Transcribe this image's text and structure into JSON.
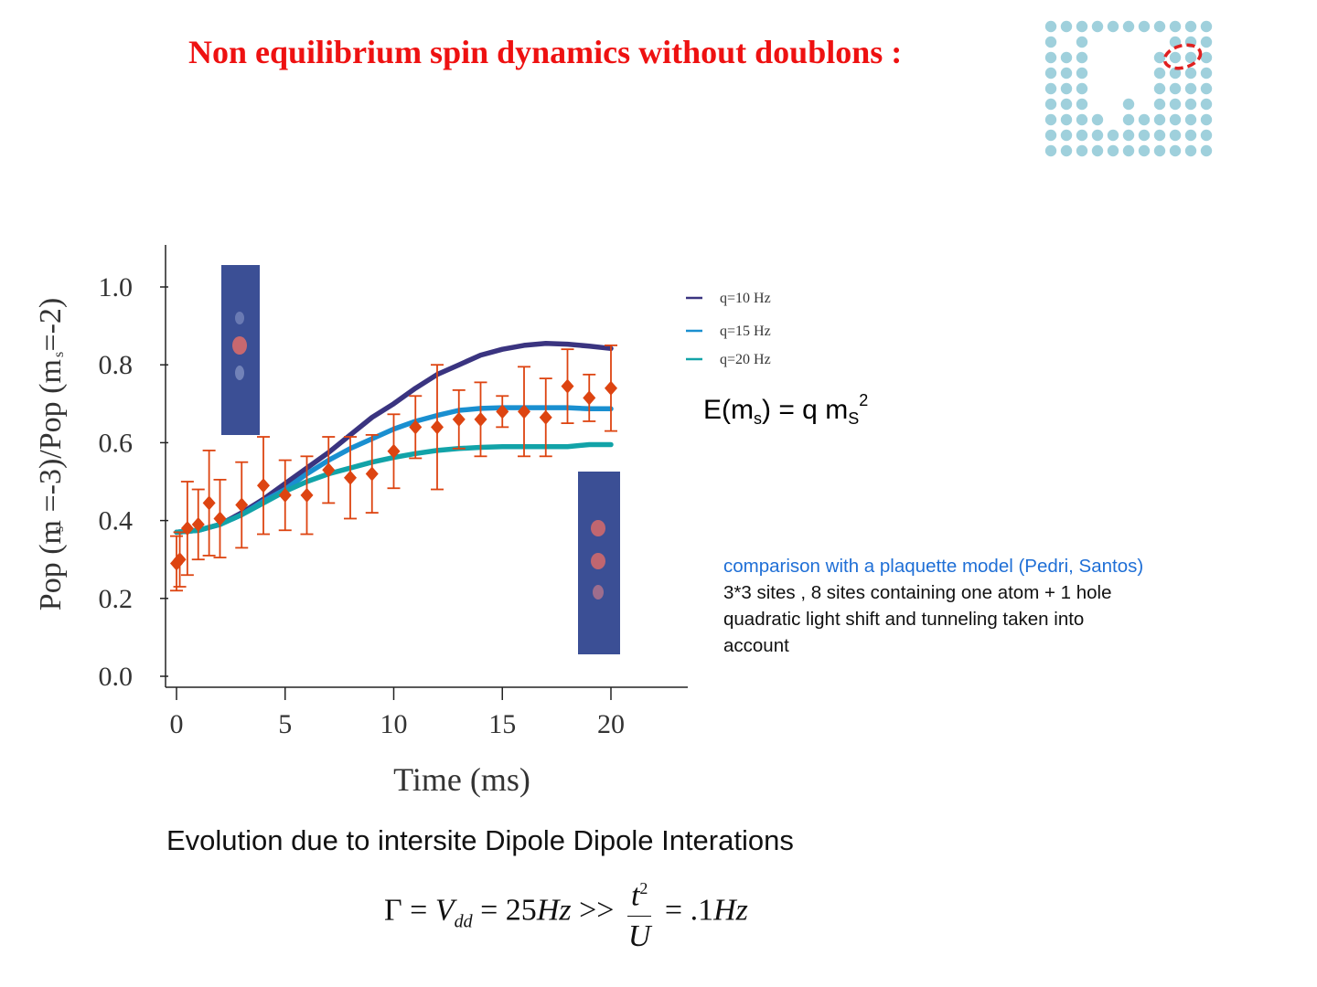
{
  "title": "Non equilibrium spin dynamics without doublons :",
  "energy": {
    "prefix": "E(m",
    "sub1": "s",
    "mid": ") = q m",
    "sub2": "S",
    "sup": "2"
  },
  "notes": {
    "line1": "comparison with a plaquette model (Pedri, Santos)",
    "line2": "3*3 sites , 8 sites containing one atom + 1 hole",
    "line3": "quadratic light shift and tunneling taken into",
    "line4": "account"
  },
  "evolution": "Evolution due to intersite Dipole Dipole Interations",
  "formula": {
    "gamma": "Γ",
    "eq1": " = ",
    "v": "V",
    "vsub": "dd",
    "eq2": " = 25",
    "hz1": "Hz",
    "gg": " >> ",
    "t": "t",
    "tsup": "2",
    "u": "U",
    "eq3": " = .1",
    "hz2": "Hz"
  },
  "colors": {
    "title": "#ee1111",
    "data": "#dd4411",
    "q10": "#3a3480",
    "q15": "#1a8fd0",
    "q20": "#12a3a8",
    "logo": "#9fd0dc",
    "logo_ring": "#e02020"
  },
  "chart_data": {
    "type": "scatter",
    "title": "",
    "xlabel": "Time (ms)",
    "ylabel": "Pop (m  =-3)/Pop (m  =-2)",
    "ylabel_sub": "s",
    "xlim": [
      -1,
      23.5
    ],
    "ylim": [
      -0.03,
      1.1
    ],
    "xticks": [
      0,
      5,
      10,
      15,
      20
    ],
    "yticks": [
      0.0,
      0.2,
      0.4,
      0.6,
      0.8,
      1.0
    ],
    "ytick_labels": [
      "0.0",
      "0.2",
      "0.4",
      "0.6",
      "0.8",
      "1.0"
    ],
    "points": [
      {
        "x": 0.0,
        "y": 0.29,
        "err": 0.07
      },
      {
        "x": 0.15,
        "y": 0.3,
        "err": 0.07
      },
      {
        "x": 0.5,
        "y": 0.38,
        "err": 0.12
      },
      {
        "x": 1.0,
        "y": 0.39,
        "err": 0.09
      },
      {
        "x": 1.5,
        "y": 0.445,
        "err": 0.135
      },
      {
        "x": 2.0,
        "y": 0.405,
        "err": 0.1
      },
      {
        "x": 3.0,
        "y": 0.44,
        "err": 0.11
      },
      {
        "x": 4.0,
        "y": 0.49,
        "err": 0.125
      },
      {
        "x": 5.0,
        "y": 0.465,
        "err": 0.09
      },
      {
        "x": 6.0,
        "y": 0.465,
        "err": 0.1
      },
      {
        "x": 7.0,
        "y": 0.53,
        "err": 0.085
      },
      {
        "x": 8.0,
        "y": 0.51,
        "err": 0.105
      },
      {
        "x": 9.0,
        "y": 0.52,
        "err": 0.1
      },
      {
        "x": 10.0,
        "y": 0.578,
        "err": 0.095
      },
      {
        "x": 11.0,
        "y": 0.64,
        "err": 0.08
      },
      {
        "x": 12.0,
        "y": 0.64,
        "err": 0.16
      },
      {
        "x": 13.0,
        "y": 0.66,
        "err": 0.075
      },
      {
        "x": 14.0,
        "y": 0.66,
        "err": 0.095
      },
      {
        "x": 15.0,
        "y": 0.68,
        "err": 0.04
      },
      {
        "x": 16.0,
        "y": 0.68,
        "err": 0.115
      },
      {
        "x": 17.0,
        "y": 0.665,
        "err": 0.1
      },
      {
        "x": 18.0,
        "y": 0.745,
        "err": 0.095
      },
      {
        "x": 19.0,
        "y": 0.715,
        "err": 0.06
      },
      {
        "x": 20.0,
        "y": 0.74,
        "err": 0.11
      }
    ],
    "series": [
      {
        "name": "q=10 Hz",
        "x": [
          0,
          1,
          2,
          3,
          4,
          5,
          6,
          7,
          8,
          9,
          10,
          11,
          12,
          13,
          14,
          15,
          16,
          17,
          18,
          19,
          20
        ],
        "y": [
          0.37,
          0.375,
          0.39,
          0.42,
          0.455,
          0.495,
          0.535,
          0.575,
          0.62,
          0.665,
          0.7,
          0.74,
          0.775,
          0.8,
          0.825,
          0.84,
          0.85,
          0.855,
          0.853,
          0.848,
          0.842
        ]
      },
      {
        "name": "q=15 Hz",
        "x": [
          0,
          1,
          2,
          3,
          4,
          5,
          6,
          7,
          8,
          9,
          10,
          11,
          12,
          13,
          14,
          15,
          16,
          17,
          18,
          19,
          20
        ],
        "y": [
          0.37,
          0.375,
          0.39,
          0.415,
          0.45,
          0.48,
          0.52,
          0.555,
          0.585,
          0.61,
          0.635,
          0.655,
          0.67,
          0.683,
          0.688,
          0.69,
          0.69,
          0.69,
          0.69,
          0.687,
          0.687
        ]
      },
      {
        "name": "q=20 Hz",
        "x": [
          0,
          1,
          2,
          3,
          4,
          5,
          6,
          7,
          8,
          9,
          10,
          11,
          12,
          13,
          14,
          15,
          16,
          17,
          18,
          19,
          20
        ],
        "y": [
          0.37,
          0.375,
          0.39,
          0.415,
          0.445,
          0.475,
          0.5,
          0.52,
          0.535,
          0.55,
          0.562,
          0.572,
          0.58,
          0.585,
          0.588,
          0.59,
          0.59,
          0.59,
          0.59,
          0.595,
          0.595
        ]
      }
    ],
    "legend_position": "top-right"
  }
}
